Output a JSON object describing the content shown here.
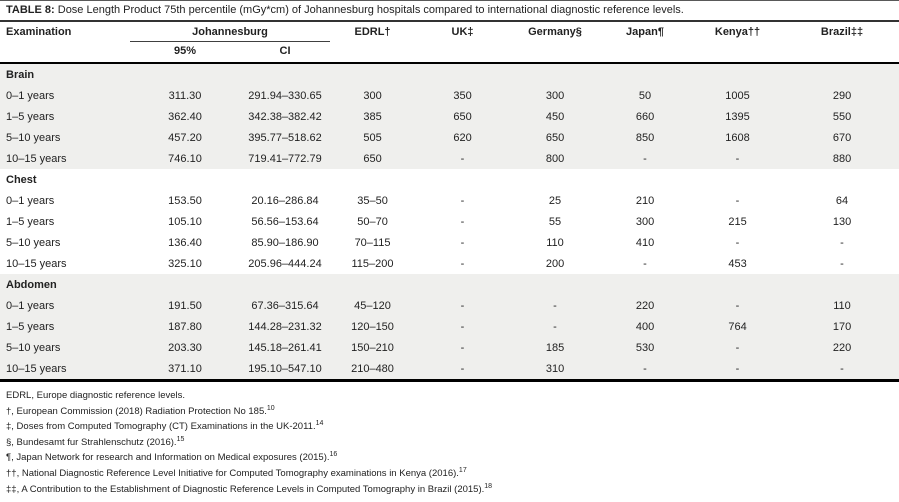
{
  "title": {
    "label": "TABLE 8:",
    "text": " Dose Length Product 75th percentile (mGy*cm) of Johannesburg hospitals compared to international diagnostic reference levels."
  },
  "columns": {
    "examination": "Examination",
    "johannesburg": "Johannesburg",
    "p95": "95%",
    "ci": "CI",
    "edrl": "EDRL†",
    "uk": "UK‡",
    "germany": "Germany§",
    "japan": "Japan¶",
    "kenya": "Kenya††",
    "brazil": "Brazil‡‡"
  },
  "sections": [
    {
      "name": "Brain",
      "shaded": true,
      "rows": [
        {
          "exam": "0–1 years",
          "values": [
            "311.30",
            "291.94–330.65",
            "300",
            "350",
            "300",
            "50",
            "1005",
            "290"
          ]
        },
        {
          "exam": "1–5 years",
          "values": [
            "362.40",
            "342.38–382.42",
            "385",
            "650",
            "450",
            "660",
            "1395",
            "550"
          ]
        },
        {
          "exam": "5–10 years",
          "values": [
            "457.20",
            "395.77–518.62",
            "505",
            "620",
            "650",
            "850",
            "1608",
            "670"
          ]
        },
        {
          "exam": "10–15 years",
          "values": [
            "746.10",
            "719.41–772.79",
            "650",
            "-",
            "800",
            "-",
            "-",
            "880"
          ]
        }
      ]
    },
    {
      "name": "Chest",
      "shaded": false,
      "rows": [
        {
          "exam": "0–1 years",
          "values": [
            "153.50",
            "20.16–286.84",
            "35–50",
            "-",
            "25",
            "210",
            "-",
            "64"
          ]
        },
        {
          "exam": "1–5 years",
          "values": [
            "105.10",
            "56.56–153.64",
            "50–70",
            "-",
            "55",
            "300",
            "215",
            "130"
          ]
        },
        {
          "exam": "5–10 years",
          "values": [
            "136.40",
            "85.90–186.90",
            "70–115",
            "-",
            "110",
            "410",
            "-",
            "-"
          ]
        },
        {
          "exam": "10–15 years",
          "values": [
            "325.10",
            "205.96–444.24",
            "115–200",
            "-",
            "200",
            "-",
            "453",
            "-"
          ]
        }
      ]
    },
    {
      "name": "Abdomen",
      "shaded": true,
      "rows": [
        {
          "exam": "0–1 years",
          "values": [
            "191.50",
            "67.36–315.64",
            "45–120",
            "-",
            "-",
            "220",
            "-",
            "110"
          ]
        },
        {
          "exam": "1–5 years",
          "values": [
            "187.80",
            "144.28–231.32",
            "120–150",
            "-",
            "-",
            "400",
            "764",
            "170"
          ]
        },
        {
          "exam": "5–10 years",
          "values": [
            "203.30",
            "145.18–261.41",
            "150–210",
            "-",
            "185",
            "530",
            "-",
            "220"
          ]
        },
        {
          "exam": "10–15 years",
          "values": [
            "371.10",
            "195.10–547.10",
            "210–480",
            "-",
            "310",
            "-",
            "-",
            "-"
          ]
        }
      ]
    }
  ],
  "footnotes": [
    {
      "text": "EDRL, Europe diagnostic reference levels.",
      "sup": ""
    },
    {
      "text": "†, European Commission (2018) Radiation Protection No 185.",
      "sup": "10"
    },
    {
      "text": "‡, Doses from Computed Tomography (CT) Examinations in the UK-2011.",
      "sup": "14"
    },
    {
      "text": "§, Bundesamt fur Strahlenschutz (2016).",
      "sup": "15"
    },
    {
      "text": "¶, Japan Network for research and Information on Medical exposures (2015).",
      "sup": "16"
    },
    {
      "text": "††, National Diagnostic Reference Level Initiative for Computed Tomography examinations in Kenya (2016).",
      "sup": "17"
    },
    {
      "text": "‡‡, A Contribution to the Establishment of Diagnostic Reference Levels in Computed Tomography in Brazil (2015).",
      "sup": "18"
    }
  ],
  "colors": {
    "section_shade": "#efefed",
    "rule_black": "#000000",
    "rule_dark_gray": "#333333",
    "text": "#222222",
    "background": "#ffffff"
  }
}
